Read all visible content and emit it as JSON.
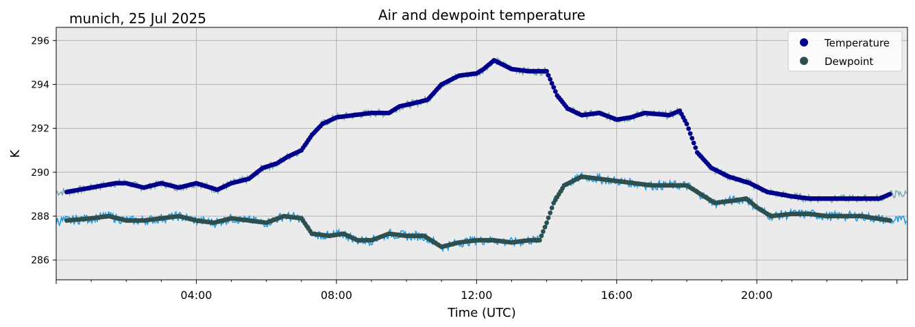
{
  "subtitle": "munich, 25 Jul 2025",
  "chart_data": {
    "type": "scatter",
    "title": "Air and dewpoint temperature",
    "xlabel": "Time (UTC)",
    "ylabel": "K",
    "xlim": [
      0,
      24.3
    ],
    "ylim": [
      285.1,
      296.6
    ],
    "grid": true,
    "legend_position": "top-right",
    "x_ticks": [
      {
        "value": 4,
        "label": "04:00"
      },
      {
        "value": 8,
        "label": "08:00"
      },
      {
        "value": 12,
        "label": "12:00"
      },
      {
        "value": 16,
        "label": "16:00"
      },
      {
        "value": 20,
        "label": "20:00"
      }
    ],
    "y_ticks": [
      {
        "value": 286,
        "label": "286"
      },
      {
        "value": 288,
        "label": "288"
      },
      {
        "value": 290,
        "label": "290"
      },
      {
        "value": 292,
        "label": "292"
      },
      {
        "value": 294,
        "label": "294"
      },
      {
        "value": 296,
        "label": "296"
      }
    ],
    "series": [
      {
        "name": "Temperature",
        "color": "#00008b",
        "raw_color": "#7aa9ab",
        "x": [
          0.3,
          1.0,
          1.7,
          2.0,
          2.5,
          3.0,
          3.5,
          4.0,
          4.6,
          5.0,
          5.5,
          5.9,
          6.3,
          6.6,
          7.0,
          7.3,
          7.6,
          8.0,
          8.5,
          9.0,
          9.5,
          9.8,
          10.1,
          10.6,
          11.0,
          11.5,
          12.0,
          12.2,
          12.5,
          13.0,
          13.5,
          14.0,
          14.3,
          14.6,
          15.0,
          15.5,
          16.0,
          16.4,
          16.8,
          17.5,
          17.8,
          18.0,
          18.3,
          18.7,
          19.2,
          19.8,
          20.3,
          21.0,
          21.5,
          22.0,
          23.0,
          23.5,
          23.8
        ],
        "values": [
          289.1,
          289.3,
          289.5,
          289.5,
          289.3,
          289.5,
          289.3,
          289.5,
          289.2,
          289.5,
          289.7,
          290.2,
          290.4,
          290.7,
          291.0,
          291.7,
          292.2,
          292.5,
          292.6,
          292.7,
          292.7,
          293.0,
          293.1,
          293.3,
          294.0,
          294.4,
          294.5,
          294.7,
          295.1,
          294.7,
          294.6,
          294.6,
          293.5,
          292.9,
          292.6,
          292.7,
          292.4,
          292.5,
          292.7,
          292.6,
          292.8,
          292.2,
          290.9,
          290.2,
          289.8,
          289.5,
          289.1,
          288.9,
          288.8,
          288.8,
          288.8,
          288.8,
          289.0
        ]
      },
      {
        "name": "Dewpoint",
        "color": "#2f4f4f",
        "raw_color": "#1e9be6",
        "x": [
          0.3,
          1.0,
          1.5,
          2.0,
          2.5,
          3.0,
          3.5,
          4.0,
          4.5,
          5.0,
          5.5,
          6.0,
          6.5,
          7.0,
          7.3,
          7.8,
          8.2,
          8.6,
          9.0,
          9.5,
          10.0,
          10.5,
          11.0,
          11.5,
          12.0,
          12.5,
          13.0,
          13.5,
          13.8,
          14.0,
          14.2,
          14.5,
          15.0,
          15.5,
          16.0,
          16.5,
          17.0,
          17.5,
          18.0,
          18.3,
          18.8,
          19.3,
          19.7,
          20.0,
          20.4,
          21.0,
          21.5,
          22.0,
          23.0,
          23.8
        ],
        "values": [
          287.8,
          287.9,
          288.0,
          287.8,
          287.8,
          287.9,
          288.0,
          287.8,
          287.7,
          287.9,
          287.8,
          287.7,
          288.0,
          287.9,
          287.2,
          287.1,
          287.2,
          286.9,
          286.9,
          287.2,
          287.1,
          287.1,
          286.6,
          286.8,
          286.9,
          286.9,
          286.8,
          286.9,
          286.9,
          287.7,
          288.6,
          289.4,
          289.8,
          289.7,
          289.6,
          289.5,
          289.4,
          289.4,
          289.4,
          289.1,
          288.6,
          288.7,
          288.8,
          288.4,
          288.0,
          288.1,
          288.1,
          288.0,
          288.0,
          287.8
        ]
      }
    ]
  }
}
